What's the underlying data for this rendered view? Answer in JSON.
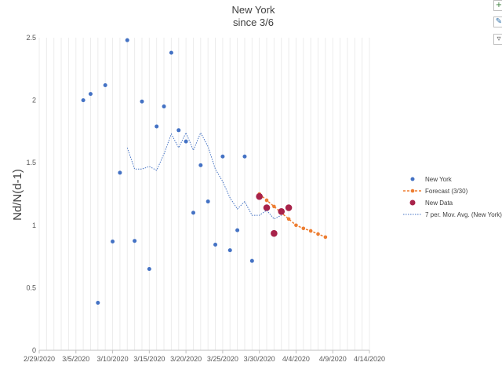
{
  "chart_data": {
    "type": "scatter",
    "title": "New York",
    "subtitle": "since 3/6",
    "xlabel": "",
    "ylabel": "Nd/N(d-1)",
    "xlim": [
      "2020-02-29",
      "2020-04-14"
    ],
    "ylim": [
      0,
      2.5
    ],
    "x_tick_labels": [
      "2/29/2020",
      "3/5/2020",
      "3/10/2020",
      "3/15/2020",
      "3/20/2020",
      "3/25/2020",
      "3/30/2020",
      "4/4/2020",
      "4/9/2020",
      "4/14/2020"
    ],
    "y_tick_labels": [
      "0",
      "0.5",
      "1",
      "1.5",
      "2",
      "2.5"
    ],
    "grid": "vertical",
    "legend_position": "right",
    "series": [
      {
        "name": "New York",
        "kind": "scatter",
        "color": "#4472C4",
        "points": [
          {
            "x": "2020-03-06",
            "y": 2.0
          },
          {
            "x": "2020-03-07",
            "y": 2.05
          },
          {
            "x": "2020-03-08",
            "y": 0.38
          },
          {
            "x": "2020-03-09",
            "y": 2.12
          },
          {
            "x": "2020-03-10",
            "y": 0.87
          },
          {
            "x": "2020-03-11",
            "y": 1.42
          },
          {
            "x": "2020-03-12",
            "y": 2.48
          },
          {
            "x": "2020-03-13",
            "y": 0.875
          },
          {
            "x": "2020-03-14",
            "y": 1.99
          },
          {
            "x": "2020-03-15",
            "y": 0.65
          },
          {
            "x": "2020-03-16",
            "y": 1.79
          },
          {
            "x": "2020-03-17",
            "y": 1.95
          },
          {
            "x": "2020-03-18",
            "y": 2.38
          },
          {
            "x": "2020-03-19",
            "y": 1.76
          },
          {
            "x": "2020-03-20",
            "y": 1.67
          },
          {
            "x": "2020-03-21",
            "y": 1.1
          },
          {
            "x": "2020-03-22",
            "y": 1.48
          },
          {
            "x": "2020-03-23",
            "y": 1.19
          },
          {
            "x": "2020-03-24",
            "y": 0.845
          },
          {
            "x": "2020-03-25",
            "y": 1.55
          },
          {
            "x": "2020-03-26",
            "y": 0.8
          },
          {
            "x": "2020-03-27",
            "y": 0.96
          },
          {
            "x": "2020-03-28",
            "y": 1.55
          },
          {
            "x": "2020-03-29",
            "y": 0.715
          }
        ]
      },
      {
        "name": "Forecast (3/30)",
        "kind": "dashed-line-markers",
        "color": "#ED7D31",
        "points": [
          {
            "x": "2020-03-30",
            "y": 1.25
          },
          {
            "x": "2020-03-31",
            "y": 1.2
          },
          {
            "x": "2020-04-01",
            "y": 1.15
          },
          {
            "x": "2020-04-02",
            "y": 1.1
          },
          {
            "x": "2020-04-03",
            "y": 1.05
          },
          {
            "x": "2020-04-04",
            "y": 1.0
          },
          {
            "x": "2020-04-05",
            "y": 0.975
          },
          {
            "x": "2020-04-06",
            "y": 0.955
          },
          {
            "x": "2020-04-07",
            "y": 0.93
          },
          {
            "x": "2020-04-08",
            "y": 0.905
          }
        ]
      },
      {
        "name": "New Data",
        "kind": "scatter-large",
        "color": "#A8234A",
        "points": [
          {
            "x": "2020-03-30",
            "y": 1.23
          },
          {
            "x": "2020-03-31",
            "y": 1.14
          },
          {
            "x": "2020-04-01",
            "y": 0.935
          },
          {
            "x": "2020-04-02",
            "y": 1.11
          },
          {
            "x": "2020-04-03",
            "y": 1.14
          }
        ]
      },
      {
        "name": "7 per. Mov. Avg. (New York)",
        "kind": "dotted-line",
        "color": "#4472C4",
        "points": [
          {
            "x": "2020-03-12",
            "y": 1.62
          },
          {
            "x": "2020-03-13",
            "y": 1.45
          },
          {
            "x": "2020-03-14",
            "y": 1.45
          },
          {
            "x": "2020-03-15",
            "y": 1.47
          },
          {
            "x": "2020-03-16",
            "y": 1.44
          },
          {
            "x": "2020-03-17",
            "y": 1.57
          },
          {
            "x": "2020-03-18",
            "y": 1.73
          },
          {
            "x": "2020-03-19",
            "y": 1.62
          },
          {
            "x": "2020-03-20",
            "y": 1.74
          },
          {
            "x": "2020-03-21",
            "y": 1.6
          },
          {
            "x": "2020-03-22",
            "y": 1.74
          },
          {
            "x": "2020-03-23",
            "y": 1.63
          },
          {
            "x": "2020-03-24",
            "y": 1.45
          },
          {
            "x": "2020-03-25",
            "y": 1.35
          },
          {
            "x": "2020-03-26",
            "y": 1.22
          },
          {
            "x": "2020-03-27",
            "y": 1.13
          },
          {
            "x": "2020-03-28",
            "y": 1.19
          },
          {
            "x": "2020-03-29",
            "y": 1.08
          },
          {
            "x": "2020-03-30",
            "y": 1.08
          },
          {
            "x": "2020-03-31",
            "y": 1.12
          },
          {
            "x": "2020-04-01",
            "y": 1.05
          },
          {
            "x": "2020-04-02",
            "y": 1.08
          }
        ]
      }
    ]
  },
  "toolbar": {
    "icons": [
      "chart-elements-icon",
      "chart-styles-icon",
      "chart-filters-icon"
    ]
  }
}
